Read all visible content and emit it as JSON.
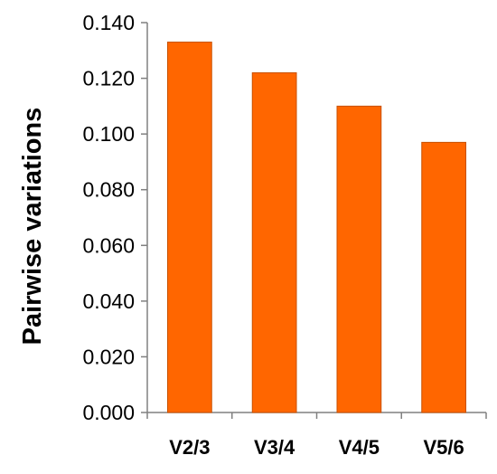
{
  "chart_data": {
    "type": "bar",
    "title": "",
    "xlabel": "",
    "ylabel": "Pairwise variations",
    "categories": [
      "V2/3",
      "V3/4",
      "V4/5",
      "V5/6"
    ],
    "values": [
      0.133,
      0.122,
      0.11,
      0.097
    ],
    "ylim": [
      0,
      0.14
    ],
    "yticks": [
      "0.000",
      "0.020",
      "0.040",
      "0.060",
      "0.080",
      "0.100",
      "0.120",
      "0.140"
    ],
    "grid": false,
    "legend": "none",
    "bar_color": "#ff6600",
    "bar_edge_color": "#c85000"
  }
}
